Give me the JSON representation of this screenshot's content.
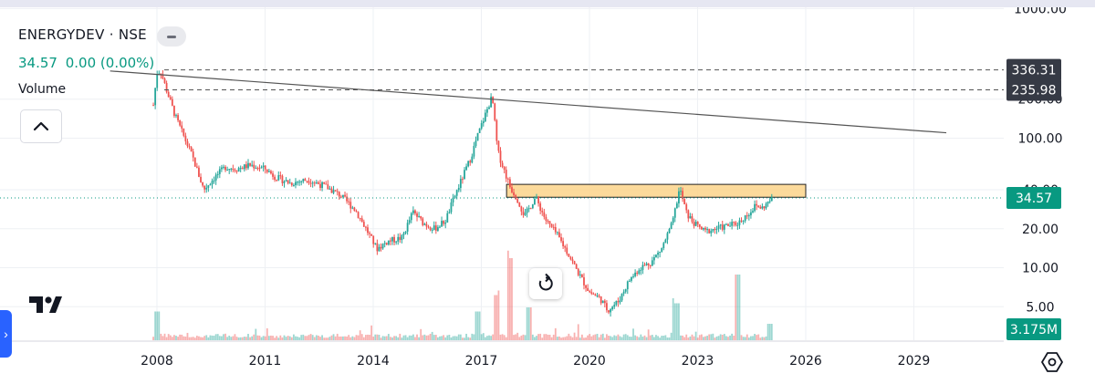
{
  "legend": {
    "symbol": "ENERGYDEV · NSE",
    "last": "34.57",
    "change": "0.00",
    "change_pct": "(0.00%)",
    "volume_label": "Volume"
  },
  "badges": {
    "last_price": "34.57",
    "volume": "3.175M",
    "line_upper": "336.31",
    "line_lower": "235.98"
  },
  "colors": {
    "up": "#26a69a",
    "down": "#ef5350",
    "zone_fill": "#fcd38a",
    "price_badge": "#089981",
    "dark_badge": "#363a45",
    "trendline": "#555555"
  },
  "icons": [
    "collapse-chevron-up-icon",
    "tradingview-logo-icon",
    "reset-chart-icon",
    "settings-hexagon-icon",
    "expand-panel-chevron-icon"
  ],
  "chart_data": {
    "type": "candlestick",
    "x_tick_labels": [
      "2008",
      "2011",
      "2014",
      "2017",
      "2020",
      "2023",
      "2026",
      "2029"
    ],
    "y_tick_labels": [
      "1000.00",
      "200.00",
      "100.00",
      "40.00",
      "20.00",
      "10.00",
      "5.00"
    ],
    "y_scale": "log",
    "ylim": [
      4,
      1000
    ],
    "last_price": 34.57,
    "horizontal_lines": [
      336.31,
      235.98
    ],
    "resistance_zone": {
      "from_year": 2017.7,
      "to_year": 2026.0,
      "low": 35,
      "high": 44
    },
    "trendline": {
      "x": [
        2006.7,
        2029.9
      ],
      "y": [
        330,
        110
      ]
    },
    "ohlc_path": [
      [
        2007.9,
        180
      ],
      [
        2008.0,
        320
      ],
      [
        2008.1,
        330
      ],
      [
        2008.3,
        220
      ],
      [
        2008.5,
        150
      ],
      [
        2008.8,
        95
      ],
      [
        2009.0,
        70
      ],
      [
        2009.3,
        40
      ],
      [
        2009.6,
        50
      ],
      [
        2009.9,
        60
      ],
      [
        2010.2,
        58
      ],
      [
        2010.6,
        62
      ],
      [
        2011.0,
        58
      ],
      [
        2011.3,
        50
      ],
      [
        2011.7,
        45
      ],
      [
        2012.2,
        48
      ],
      [
        2012.7,
        42
      ],
      [
        2013.1,
        36
      ],
      [
        2013.5,
        28
      ],
      [
        2013.8,
        20
      ],
      [
        2014.1,
        14
      ],
      [
        2014.4,
        16
      ],
      [
        2014.8,
        17
      ],
      [
        2015.1,
        27
      ],
      [
        2015.4,
        22
      ],
      [
        2015.7,
        20
      ],
      [
        2016.0,
        23
      ],
      [
        2016.3,
        38
      ],
      [
        2016.7,
        70
      ],
      [
        2016.9,
        105
      ],
      [
        2017.1,
        150
      ],
      [
        2017.3,
        210
      ],
      [
        2017.45,
        80
      ],
      [
        2017.6,
        60
      ],
      [
        2017.8,
        42
      ],
      [
        2018.0,
        34
      ],
      [
        2018.2,
        25
      ],
      [
        2018.5,
        35
      ],
      [
        2018.8,
        23
      ],
      [
        2019.1,
        18
      ],
      [
        2019.4,
        13
      ],
      [
        2019.7,
        9
      ],
      [
        2020.0,
        6.5
      ],
      [
        2020.3,
        5.8
      ],
      [
        2020.5,
        4.7
      ],
      [
        2020.8,
        5.5
      ],
      [
        2021.1,
        8
      ],
      [
        2021.4,
        10
      ],
      [
        2021.7,
        11
      ],
      [
        2022.0,
        14
      ],
      [
        2022.3,
        22
      ],
      [
        2022.5,
        41
      ],
      [
        2022.7,
        26
      ],
      [
        2022.9,
        22
      ],
      [
        2023.2,
        19
      ],
      [
        2023.5,
        20
      ],
      [
        2023.8,
        21
      ],
      [
        2024.1,
        22
      ],
      [
        2024.4,
        26
      ],
      [
        2024.6,
        30
      ],
      [
        2024.8,
        29
      ],
      [
        2025.1,
        34.57
      ]
    ],
    "volume_spikes": [
      [
        2008.0,
        0.35
      ],
      [
        2016.9,
        0.35
      ],
      [
        2017.45,
        0.55
      ],
      [
        2017.8,
        1.0
      ],
      [
        2018.3,
        0.4
      ],
      [
        2022.4,
        0.45
      ],
      [
        2024.1,
        0.8
      ],
      [
        2025.0,
        0.2
      ]
    ]
  }
}
